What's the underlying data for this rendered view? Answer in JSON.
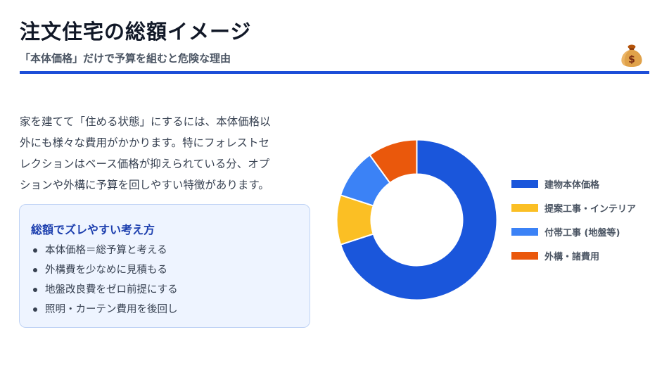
{
  "header": {
    "title": "注文住宅の総額イメージ",
    "subtitle": "「本体価格」だけで予算を組むと危険な理由",
    "icon": "money-bag-icon",
    "accent_color": "#1d4ed8"
  },
  "intro": {
    "lines": [
      "家を建てて「住める状態」にするには、本体価格以",
      "外にも様々な費用がかかります。特にフォレストセ",
      "レクションはベース価格が抑えられている分、オプ",
      "ションや外構に予算を回しやすい特徴があります。"
    ]
  },
  "tips": {
    "title": "総額でズレやすい考え方",
    "items": [
      "本体価格＝総予算と考える",
      "外構費を少なめに見積もる",
      "地盤改良費をゼロ前提にする",
      "照明・カーテン費用を後回し"
    ]
  },
  "chart_data": {
    "type": "pie",
    "variant": "donut",
    "legend_position": "right",
    "series": [
      {
        "name": "建物本体価格",
        "value": 70,
        "color": "#1a56db"
      },
      {
        "name": "提案工事・インテリア",
        "value": 10,
        "color": "#fbbf24"
      },
      {
        "name": "付帯工事 (地盤等)",
        "value": 10,
        "color": "#3b82f6"
      },
      {
        "name": "外構・諸費用",
        "value": 10,
        "color": "#ea580c"
      }
    ]
  }
}
